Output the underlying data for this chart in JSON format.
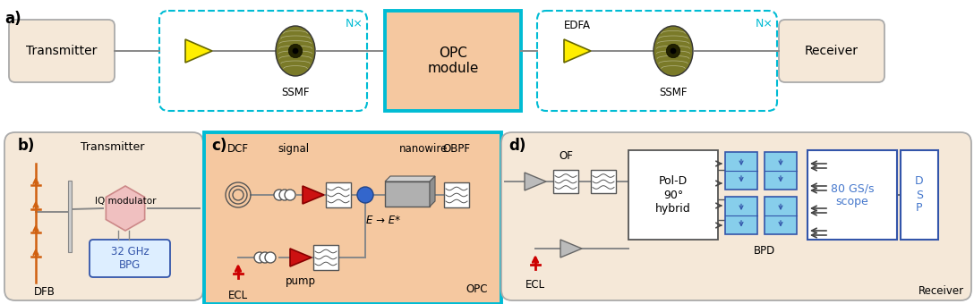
{
  "bg_white": "#ffffff",
  "panel_bg_peach": "#f5c8a0",
  "panel_bg_light": "#f5e8d8",
  "box_peach": "#f5c8a0",
  "box_light_peach": "#f0dcc8",
  "opc_border_cyan": "#00bcd4",
  "dashed_cyan": "#00bcd4",
  "receiver_fill": "#f5e8d8",
  "transmitter_fill": "#f5e8d8",
  "yellow_fill": "#ffee00",
  "yellow_edge": "#888800",
  "ssmf_dark": "#6b6b20",
  "ssmf_mid": "#8b8b30",
  "orange_line": "#d06010",
  "red_fill": "#cc0000",
  "red_edge": "#880000",
  "blue_dot": "#3366cc",
  "blue_box_fill": "#87ceeb",
  "blue_box_edge": "#3355aa",
  "scope_blue": "#4477cc",
  "gray_arrow_fill": "#999999",
  "gray_line": "#888888",
  "dark_line": "#333333",
  "label_a": "a)",
  "label_b": "b)",
  "label_c": "c)",
  "label_d": "d)",
  "transmitter": "Transmitter",
  "receiver": "Receiver",
  "ssmf": "SSMF",
  "edfa": "EDFA",
  "nx": "N×",
  "opc_module": "OPC\nmodule",
  "transmitter2": "Transmitter",
  "iq_mod": "IQ modulator",
  "dfb": "DFB",
  "bpg": "32 GHz\nBPG",
  "dcf": "DCF",
  "signal": "signal",
  "nanowire": "nanowire",
  "obpf": "OBPF",
  "ecl": "ECL",
  "pump": "pump",
  "opc2": "OPC",
  "e_star": "E → E*",
  "of": "OF",
  "pol_d": "Pol-D\n90°\nhybrid",
  "bpd": "BPD",
  "scope": "80 GS/s\nscope",
  "dsp": "D\nS\nP",
  "ecl2": "ECL",
  "receiver2": "Receiver",
  "fig_w": 1088,
  "fig_h": 340
}
